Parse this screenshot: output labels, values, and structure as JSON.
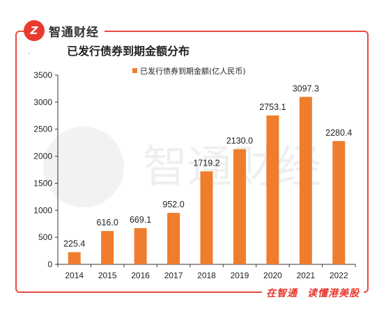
{
  "brand": {
    "logo_letter": "Z",
    "name": "智通财经"
  },
  "footer": {
    "left": "在智通",
    "right": "读懂港美股"
  },
  "corner_mark": "-",
  "colors": {
    "bar": "#EE7D2D",
    "frame": "#E84A3F",
    "brand": "#E83A2F"
  },
  "chart_data": {
    "type": "bar",
    "title": "已发行债券到期金额分布",
    "categories": [
      "2014",
      "2015",
      "2016",
      "2017",
      "2018",
      "2019",
      "2020",
      "2021",
      "2022"
    ],
    "series": [
      {
        "name": "已发行债券到期金额(亿人民币)",
        "values": [
          225.4,
          616.0,
          669.1,
          952.0,
          1719.2,
          2130.0,
          2753.1,
          3097.3,
          2280.4
        ]
      }
    ],
    "data_labels": [
      "225.4",
      "616.0",
      "669.1",
      "952.0",
      "1719.2",
      "2130.0",
      "2753.1",
      "3097.3",
      "2280.4"
    ],
    "ylim": [
      0,
      3500
    ],
    "yticks": [
      "0",
      "500",
      "1000",
      "1500",
      "2000",
      "2500",
      "3000",
      "3500"
    ],
    "xlabel": "",
    "ylabel": "",
    "grid": false,
    "legend_position": "top"
  }
}
